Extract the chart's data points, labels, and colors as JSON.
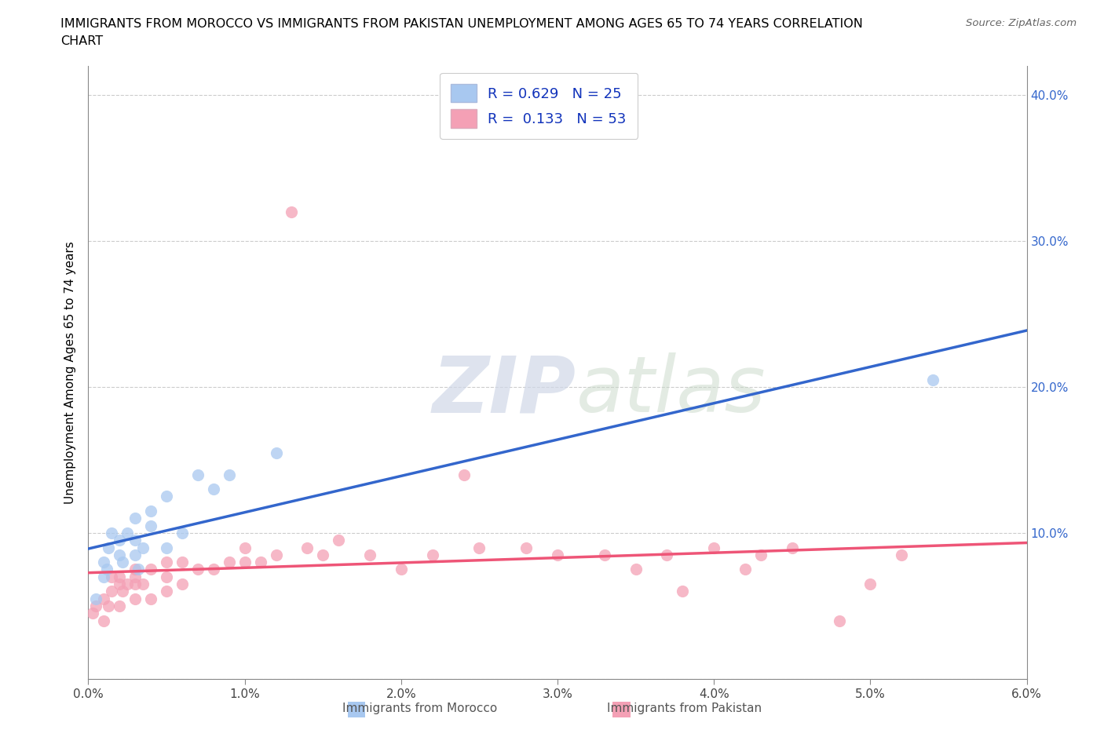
{
  "title_line1": "IMMIGRANTS FROM MOROCCO VS IMMIGRANTS FROM PAKISTAN UNEMPLOYMENT AMONG AGES 65 TO 74 YEARS CORRELATION",
  "title_line2": "CHART",
  "source": "Source: ZipAtlas.com",
  "ylabel": "Unemployment Among Ages 65 to 74 years",
  "xlim": [
    0.0,
    0.06
  ],
  "ylim": [
    0.0,
    0.42
  ],
  "xticks": [
    0.0,
    0.01,
    0.02,
    0.03,
    0.04,
    0.05,
    0.06
  ],
  "xtick_labels": [
    "0.0%",
    "1.0%",
    "2.0%",
    "3.0%",
    "4.0%",
    "5.0%",
    "6.0%"
  ],
  "yticks": [
    0.0,
    0.1,
    0.2,
    0.3,
    0.4
  ],
  "ytick_labels_right": [
    "",
    "10.0%",
    "20.0%",
    "30.0%",
    "40.0%"
  ],
  "morocco_color": "#a8c8f0",
  "pakistan_color": "#f4a0b5",
  "morocco_line_color": "#3366cc",
  "pakistan_line_color": "#ee5577",
  "watermark_ZIP": "ZIP",
  "watermark_atlas": "atlas",
  "legend_R_morocco": "R = 0.629",
  "legend_N_morocco": "N = 25",
  "legend_R_pakistan": "R =  0.133",
  "legend_N_pakistan": "N = 53",
  "morocco_color_dark": "#6699cc",
  "pakistan_color_dark": "#ee88aa",
  "morocco_x": [
    0.0005,
    0.001,
    0.001,
    0.0012,
    0.0013,
    0.0015,
    0.002,
    0.002,
    0.0022,
    0.0025,
    0.003,
    0.003,
    0.003,
    0.0032,
    0.0035,
    0.004,
    0.004,
    0.005,
    0.005,
    0.006,
    0.007,
    0.008,
    0.009,
    0.012,
    0.054
  ],
  "morocco_y": [
    0.055,
    0.07,
    0.08,
    0.075,
    0.09,
    0.1,
    0.085,
    0.095,
    0.08,
    0.1,
    0.085,
    0.095,
    0.11,
    0.075,
    0.09,
    0.105,
    0.115,
    0.09,
    0.125,
    0.1,
    0.14,
    0.13,
    0.14,
    0.155,
    0.205
  ],
  "pakistan_x": [
    0.0003,
    0.0005,
    0.001,
    0.001,
    0.0013,
    0.0015,
    0.0015,
    0.002,
    0.002,
    0.002,
    0.0022,
    0.0025,
    0.003,
    0.003,
    0.003,
    0.003,
    0.0035,
    0.004,
    0.004,
    0.005,
    0.005,
    0.005,
    0.006,
    0.006,
    0.007,
    0.008,
    0.009,
    0.01,
    0.01,
    0.011,
    0.012,
    0.013,
    0.014,
    0.015,
    0.016,
    0.018,
    0.02,
    0.022,
    0.024,
    0.025,
    0.028,
    0.03,
    0.033,
    0.035,
    0.037,
    0.038,
    0.04,
    0.042,
    0.043,
    0.045,
    0.048,
    0.05,
    0.052
  ],
  "pakistan_y": [
    0.045,
    0.05,
    0.04,
    0.055,
    0.05,
    0.06,
    0.07,
    0.05,
    0.065,
    0.07,
    0.06,
    0.065,
    0.055,
    0.065,
    0.07,
    0.075,
    0.065,
    0.055,
    0.075,
    0.06,
    0.07,
    0.08,
    0.065,
    0.08,
    0.075,
    0.075,
    0.08,
    0.08,
    0.09,
    0.08,
    0.085,
    0.32,
    0.09,
    0.085,
    0.095,
    0.085,
    0.075,
    0.085,
    0.14,
    0.09,
    0.09,
    0.085,
    0.085,
    0.075,
    0.085,
    0.06,
    0.09,
    0.075,
    0.085,
    0.09,
    0.04,
    0.065,
    0.085
  ]
}
